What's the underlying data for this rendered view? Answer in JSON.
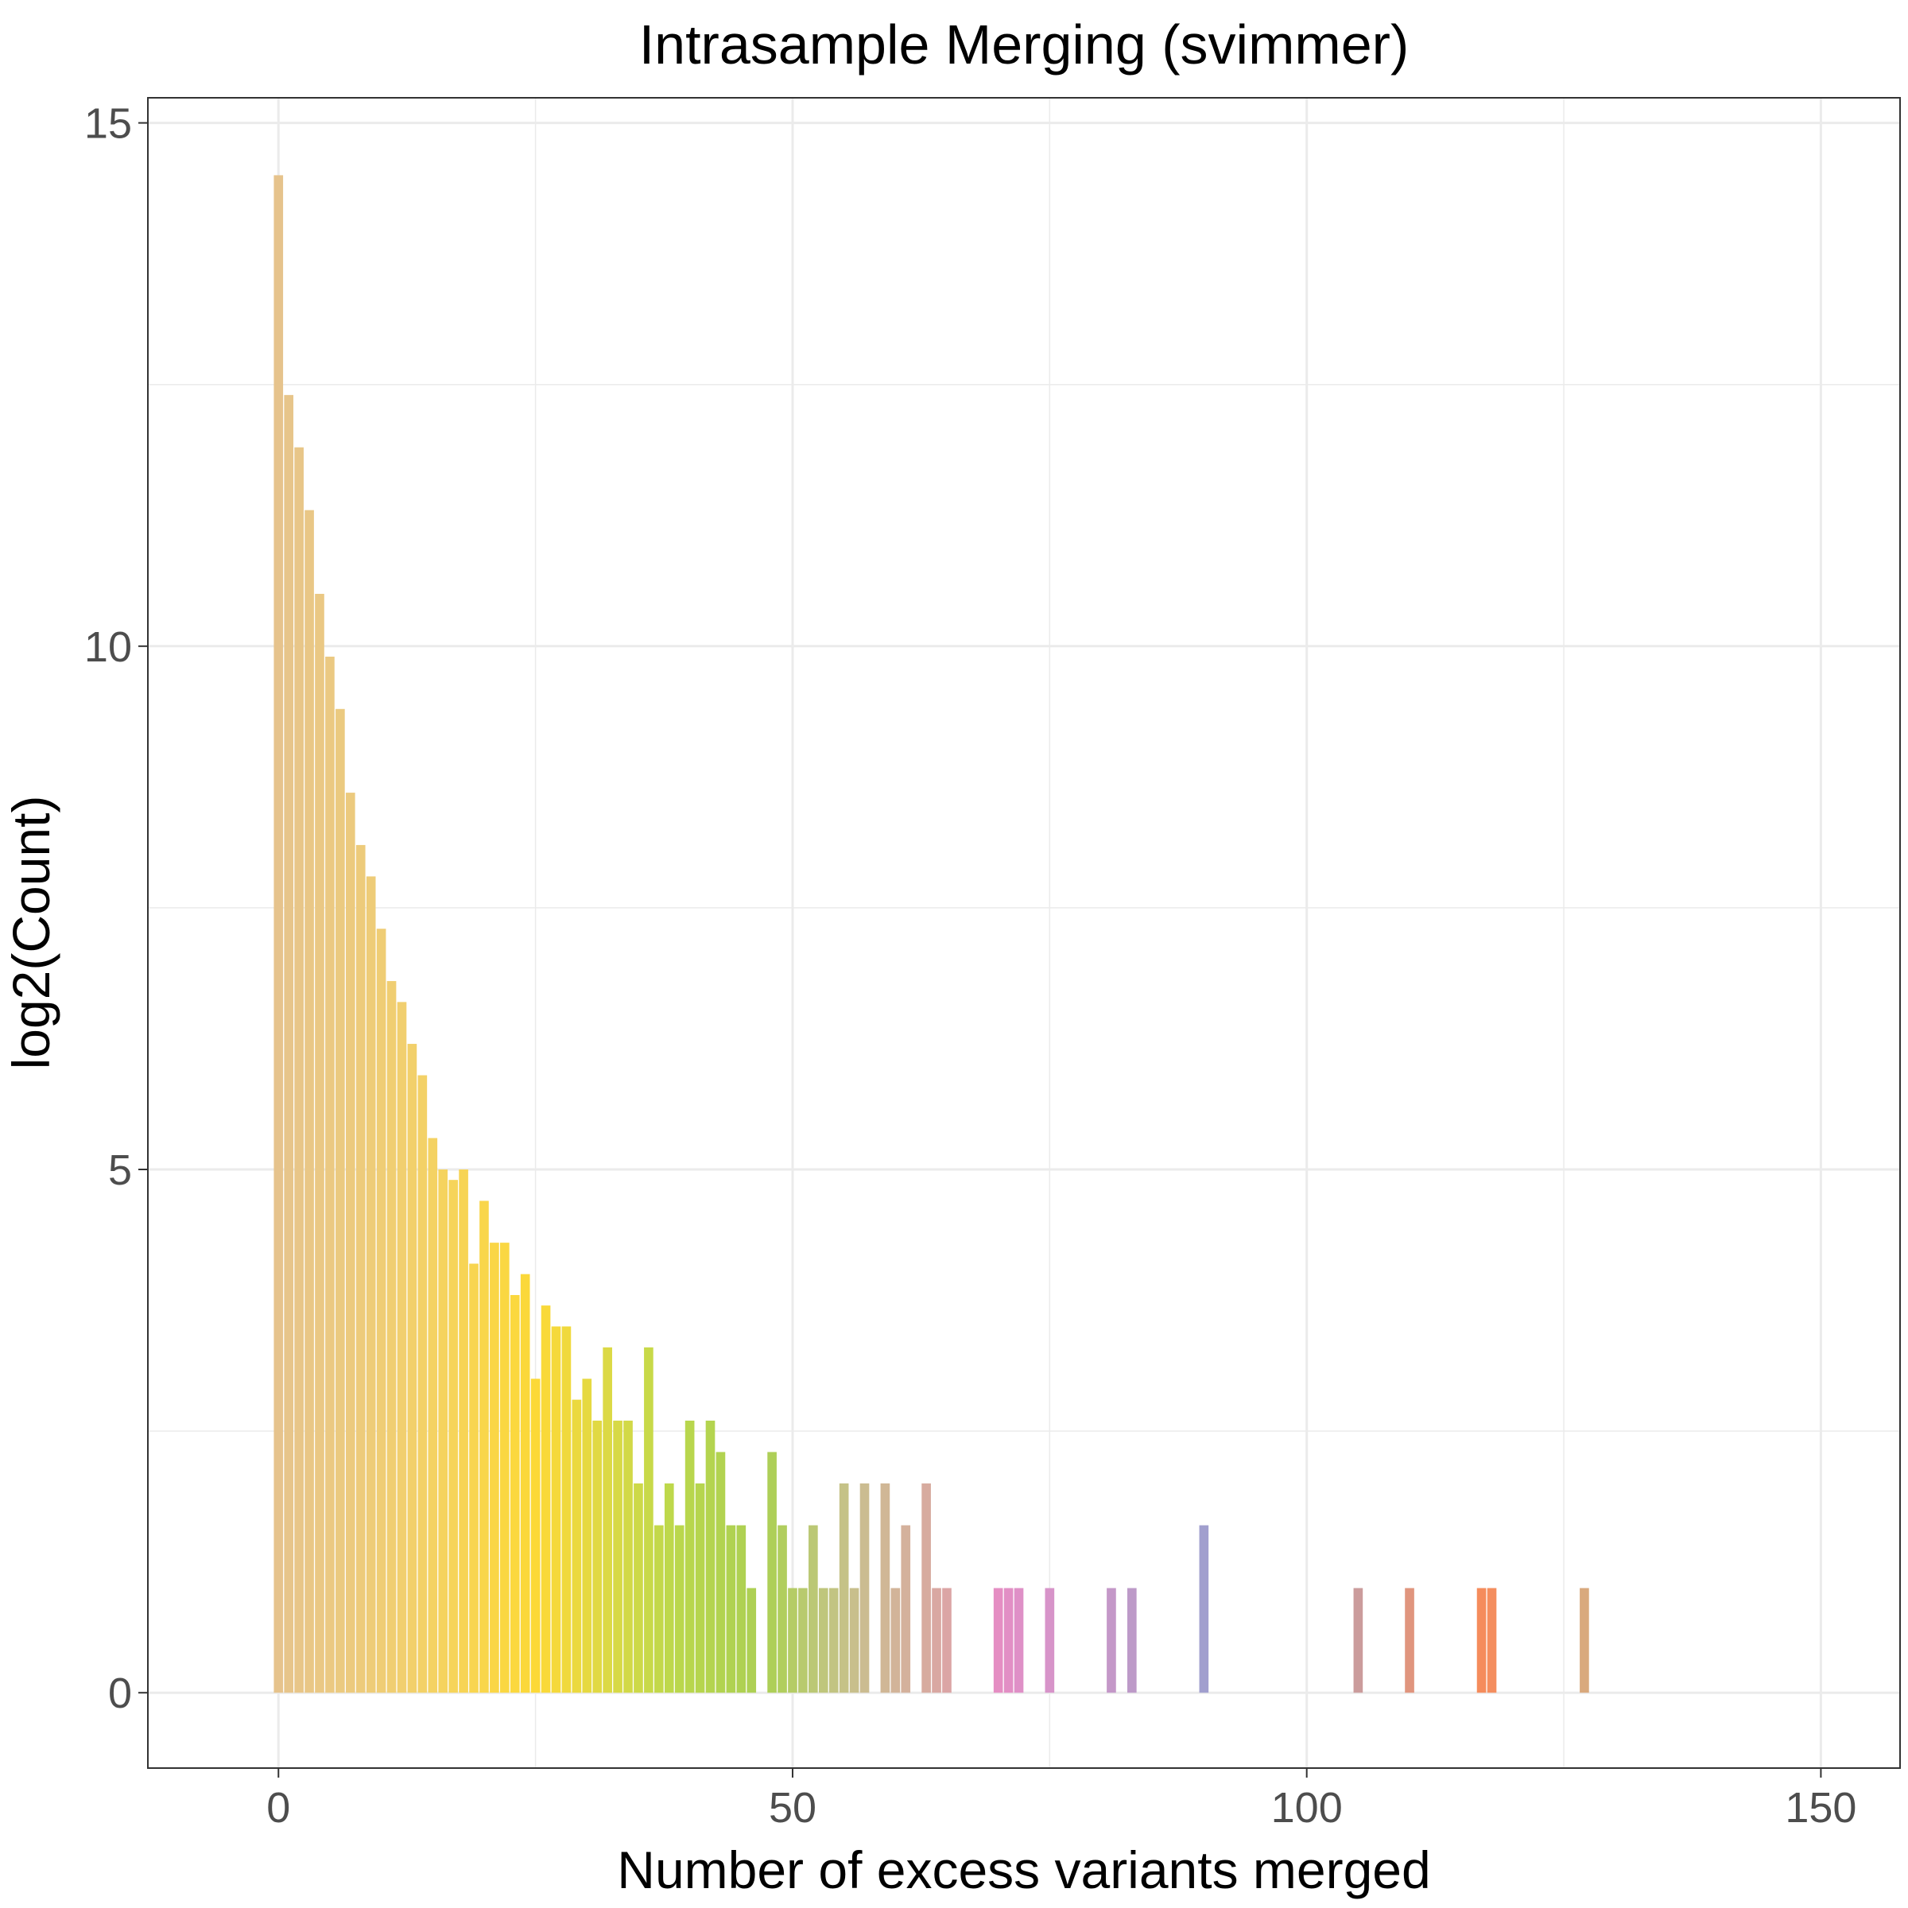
{
  "chart_data": {
    "type": "bar",
    "title": "Intrasample Merging (svimmer)",
    "xlabel": "Number of excess variants merged",
    "ylabel": "log2(Count)",
    "xlim": [
      -12.7,
      157.7
    ],
    "ylim": [
      -0.72,
      15.24
    ],
    "x_ticks": [
      0,
      50,
      100,
      150
    ],
    "y_ticks": [
      0,
      5,
      10,
      15
    ],
    "grid": true,
    "points": [
      {
        "x": 0,
        "y": 14.5,
        "color": "#e6c38c"
      },
      {
        "x": 1,
        "y": 12.4,
        "color": "#e7c58a"
      },
      {
        "x": 2,
        "y": 11.9,
        "color": "#e8c688"
      },
      {
        "x": 3,
        "y": 11.3,
        "color": "#e9c786"
      },
      {
        "x": 4,
        "y": 10.5,
        "color": "#eac884"
      },
      {
        "x": 5,
        "y": 9.9,
        "color": "#ebc982"
      },
      {
        "x": 6,
        "y": 9.4,
        "color": "#ebca80"
      },
      {
        "x": 7,
        "y": 8.6,
        "color": "#ecca7e"
      },
      {
        "x": 8,
        "y": 8.1,
        "color": "#edcb7b"
      },
      {
        "x": 9,
        "y": 7.8,
        "color": "#eecc78"
      },
      {
        "x": 10,
        "y": 7.3,
        "color": "#efcd75"
      },
      {
        "x": 11,
        "y": 6.8,
        "color": "#f0ce72"
      },
      {
        "x": 12,
        "y": 6.6,
        "color": "#f1cf6f"
      },
      {
        "x": 13,
        "y": 6.2,
        "color": "#f2d06b"
      },
      {
        "x": 14,
        "y": 5.9,
        "color": "#f3d167"
      },
      {
        "x": 15,
        "y": 5.3,
        "color": "#f4d263"
      },
      {
        "x": 16,
        "y": 5.0,
        "color": "#f5d35e"
      },
      {
        "x": 17,
        "y": 4.9,
        "color": "#f6d45a"
      },
      {
        "x": 18,
        "y": 5.0,
        "color": "#f7d455"
      },
      {
        "x": 19,
        "y": 4.1,
        "color": "#f8d550"
      },
      {
        "x": 20,
        "y": 4.7,
        "color": "#f9d64b"
      },
      {
        "x": 21,
        "y": 4.3,
        "color": "#fad646"
      },
      {
        "x": 22,
        "y": 4.3,
        "color": "#fad742"
      },
      {
        "x": 23,
        "y": 3.8,
        "color": "#fbd83e"
      },
      {
        "x": 24,
        "y": 4.0,
        "color": "#fbd83a"
      },
      {
        "x": 25,
        "y": 3.0,
        "color": "#fcd937"
      },
      {
        "x": 26,
        "y": 3.7,
        "color": "#f9d939"
      },
      {
        "x": 27,
        "y": 3.5,
        "color": "#f5d93b"
      },
      {
        "x": 28,
        "y": 3.5,
        "color": "#f0d93d"
      },
      {
        "x": 29,
        "y": 2.8,
        "color": "#ebd93f"
      },
      {
        "x": 30,
        "y": 3.0,
        "color": "#e6d941"
      },
      {
        "x": 31,
        "y": 2.6,
        "color": "#e1d943"
      },
      {
        "x": 32,
        "y": 3.3,
        "color": "#dcd945"
      },
      {
        "x": 33,
        "y": 2.6,
        "color": "#d7d946"
      },
      {
        "x": 34,
        "y": 2.6,
        "color": "#d2d947"
      },
      {
        "x": 35,
        "y": 2.0,
        "color": "#cdd948"
      },
      {
        "x": 36,
        "y": 3.3,
        "color": "#c8d949"
      },
      {
        "x": 37,
        "y": 1.6,
        "color": "#c3d84a"
      },
      {
        "x": 38,
        "y": 2.0,
        "color": "#bed84b"
      },
      {
        "x": 39,
        "y": 1.6,
        "color": "#bad74c"
      },
      {
        "x": 40,
        "y": 2.6,
        "color": "#b8d64d"
      },
      {
        "x": 41,
        "y": 2.0,
        "color": "#b6d54e"
      },
      {
        "x": 42,
        "y": 2.6,
        "color": "#b4d44f"
      },
      {
        "x": 43,
        "y": 2.3,
        "color": "#b2d350"
      },
      {
        "x": 44,
        "y": 1.6,
        "color": "#b0d251"
      },
      {
        "x": 45,
        "y": 1.6,
        "color": "#afd152"
      },
      {
        "x": 46,
        "y": 1.0,
        "color": "#aed054"
      },
      {
        "x": 48,
        "y": 2.3,
        "color": "#aecf58"
      },
      {
        "x": 49,
        "y": 1.6,
        "color": "#b1ce5e"
      },
      {
        "x": 50,
        "y": 1.0,
        "color": "#b5cc66"
      },
      {
        "x": 51,
        "y": 1.0,
        "color": "#b8ca6e"
      },
      {
        "x": 52,
        "y": 1.6,
        "color": "#bbc875"
      },
      {
        "x": 53,
        "y": 1.0,
        "color": "#bfc67c"
      },
      {
        "x": 54,
        "y": 1.0,
        "color": "#c2c482"
      },
      {
        "x": 55,
        "y": 2.0,
        "color": "#c5c287"
      },
      {
        "x": 56,
        "y": 1.0,
        "color": "#c8bf8c"
      },
      {
        "x": 57,
        "y": 2.0,
        "color": "#cbbc91"
      },
      {
        "x": 59,
        "y": 2.0,
        "color": "#d0b796"
      },
      {
        "x": 60,
        "y": 1.0,
        "color": "#d2b499"
      },
      {
        "x": 61,
        "y": 1.6,
        "color": "#d4b19c"
      },
      {
        "x": 63,
        "y": 2.0,
        "color": "#d7ab9f"
      },
      {
        "x": 64,
        "y": 1.0,
        "color": "#d9a8a2"
      },
      {
        "x": 65,
        "y": 1.0,
        "color": "#dba5a5"
      },
      {
        "x": 70,
        "y": 1.0,
        "color": "#e58ec3"
      },
      {
        "x": 71,
        "y": 1.0,
        "color": "#e28fc5"
      },
      {
        "x": 72,
        "y": 1.0,
        "color": "#df90c7"
      },
      {
        "x": 75,
        "y": 1.0,
        "color": "#d794c9"
      },
      {
        "x": 81,
        "y": 1.0,
        "color": "#c498c8"
      },
      {
        "x": 83,
        "y": 1.0,
        "color": "#bd9ac8"
      },
      {
        "x": 90,
        "y": 1.6,
        "color": "#a19fce"
      },
      {
        "x": 105,
        "y": 1.0,
        "color": "#cb9c9c"
      },
      {
        "x": 110,
        "y": 1.0,
        "color": "#e0957e"
      },
      {
        "x": 117,
        "y": 1.0,
        "color": "#f58c5c"
      },
      {
        "x": 118,
        "y": 1.0,
        "color": "#f48e5f"
      },
      {
        "x": 127,
        "y": 1.0,
        "color": "#d9a97d"
      }
    ]
  }
}
